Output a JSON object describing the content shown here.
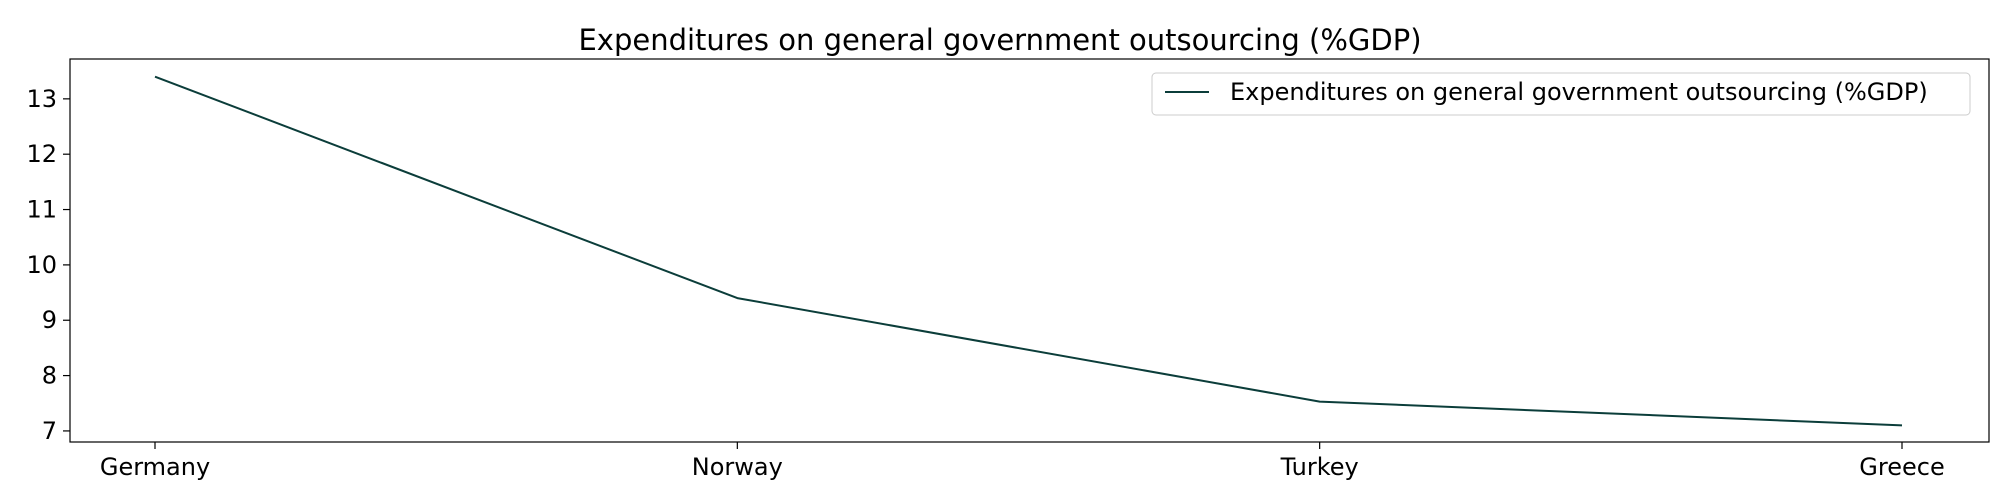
{
  "chart_data": {
    "type": "line",
    "title": "Expenditures on general government outsourcing (%GDP)",
    "xlabel": "",
    "ylabel": "",
    "categories": [
      "Germany",
      "Norway",
      "Turkey",
      "Greece"
    ],
    "series": [
      {
        "name": "Expenditures on general government outsourcing (%GDP)",
        "values": [
          13.4,
          9.4,
          7.53,
          7.1
        ],
        "color": "#0b3d3a"
      }
    ],
    "yticks": [
      7,
      8,
      9,
      10,
      11,
      12,
      13
    ],
    "ylim": [
      6.8,
      13.72
    ],
    "grid": false,
    "legend_position": "top-right"
  }
}
